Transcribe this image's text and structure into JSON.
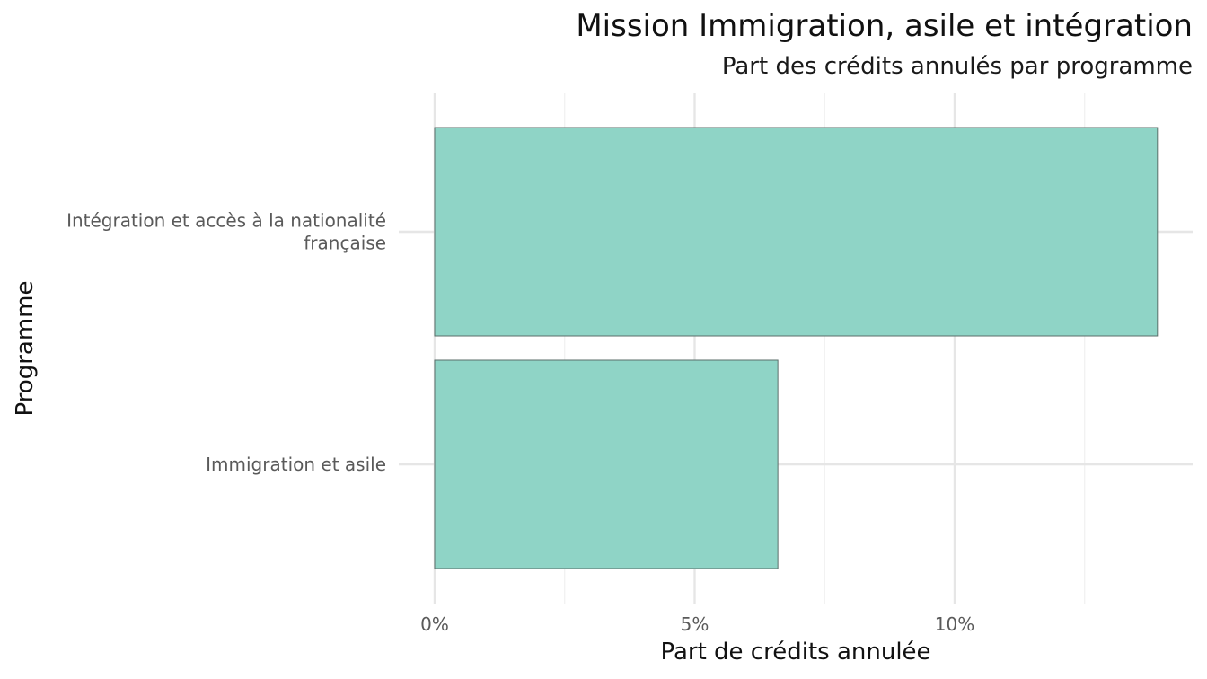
{
  "chart_data": {
    "type": "bar",
    "orientation": "horizontal",
    "title": "Mission Immigration, asile et intégration",
    "subtitle": "Part des crédits annulés par programme",
    "xlabel": "Part de crédits annulée",
    "ylabel": "Programme",
    "categories": [
      [
        "Intégration et accès à la nationalité",
        "française"
      ],
      [
        "Immigration et asile"
      ]
    ],
    "values": [
      13.9,
      6.6
    ],
    "value_unit": "%",
    "xlim": [
      0,
      14.2
    ],
    "xticks": [
      0,
      5,
      10
    ],
    "xtick_labels": [
      "0%",
      "5%",
      "10%"
    ],
    "grid": true,
    "legend": "none",
    "colors": {
      "bar_fill": "#8fd4c6",
      "bar_stroke": "#5b6e6a",
      "grid_major": "#e6e6e6",
      "grid_minor": "#f0f0f0"
    }
  }
}
